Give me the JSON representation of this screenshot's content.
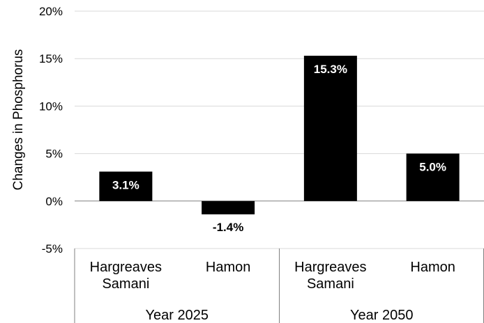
{
  "chart_data": {
    "type": "bar",
    "ylabel": "Changes in Phosphorus",
    "ylim": [
      -5,
      20
    ],
    "yticks": [
      -5,
      0,
      5,
      10,
      15,
      20
    ],
    "ytick_labels": [
      "-5%",
      "0%",
      "5%",
      "10%",
      "15%",
      "20%"
    ],
    "grid": true,
    "groups": [
      {
        "label": "Year 2025",
        "categories": [
          {
            "lines": [
              "Hargreaves",
              "Samani"
            ],
            "value": 3.1,
            "label": "3.1%"
          },
          {
            "lines": [
              "Hamon"
            ],
            "value": -1.4,
            "label": "-1.4%"
          }
        ]
      },
      {
        "label": "Year 2050",
        "categories": [
          {
            "lines": [
              "Hargreaves",
              "Samani"
            ],
            "value": 15.3,
            "label": "15.3%"
          },
          {
            "lines": [
              "Hamon"
            ],
            "value": 5.0,
            "label": "5.0%"
          }
        ]
      }
    ],
    "colors": {
      "bar": "#000000",
      "grid": "#d9d9d9",
      "axis": "#808080",
      "label_inside": "#ffffff",
      "label_outside": "#000000"
    }
  }
}
